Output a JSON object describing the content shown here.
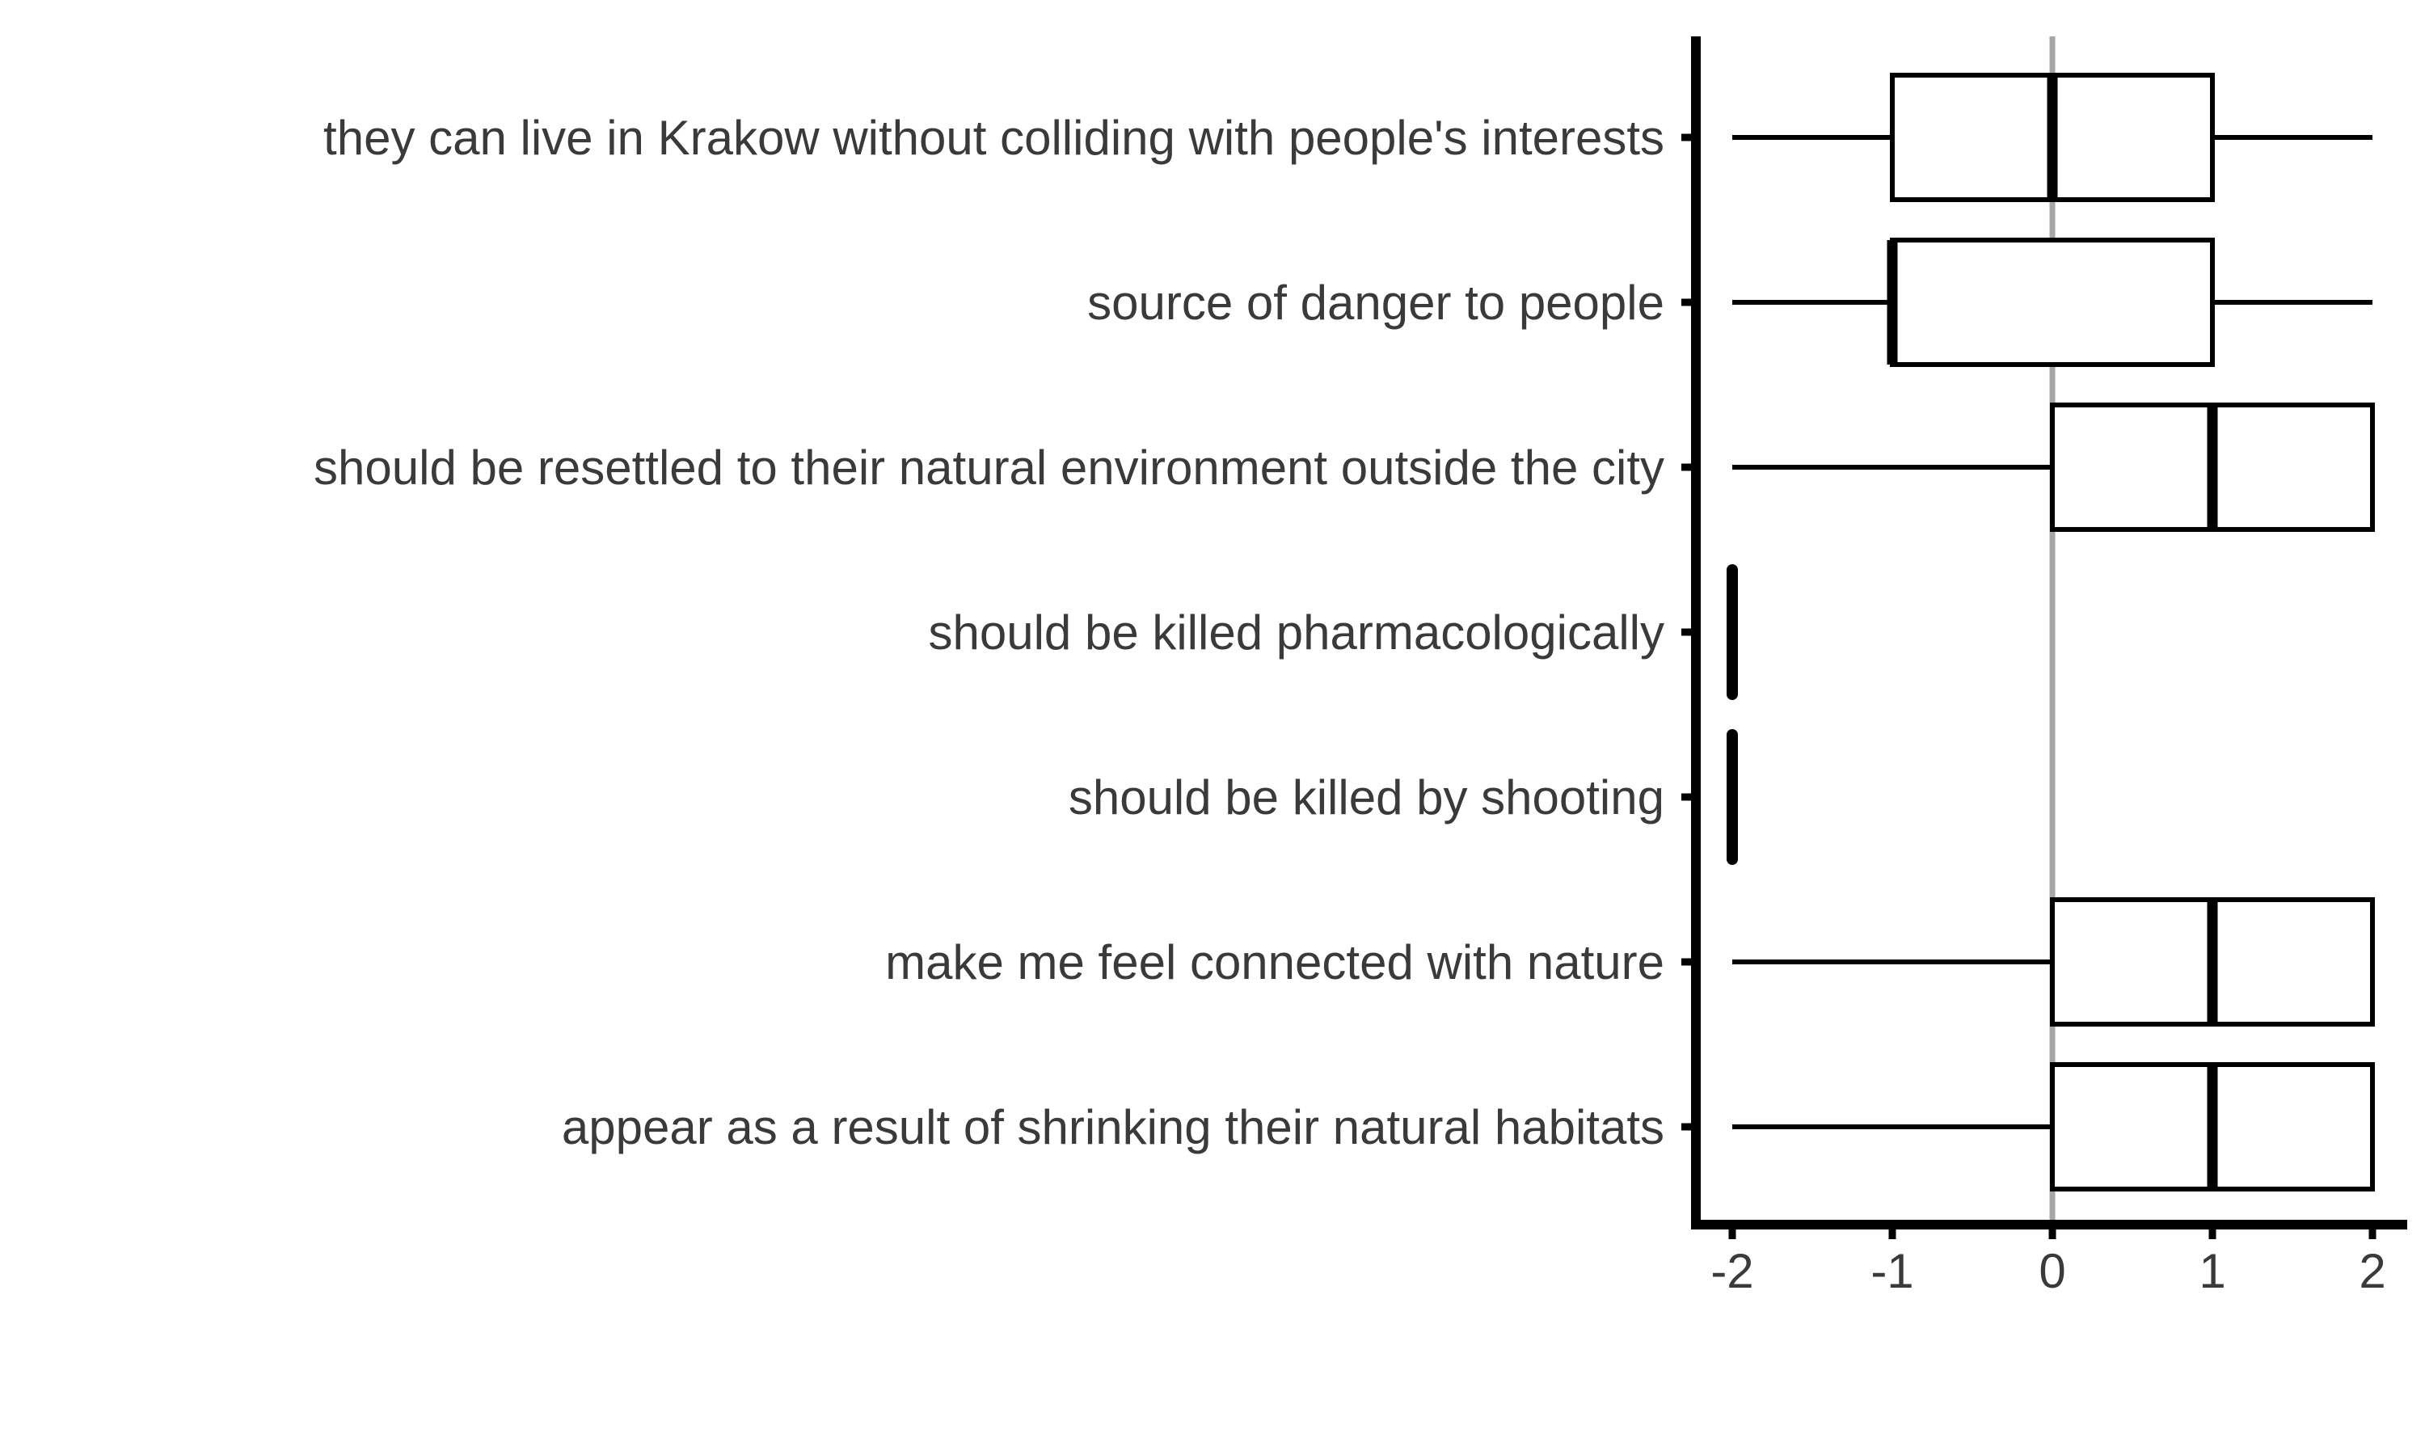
{
  "chart_data": {
    "type": "boxplot",
    "orientation": "horizontal",
    "title": "",
    "xlabel": "",
    "ylabel": "",
    "xlim": [
      -2.1,
      2.1
    ],
    "x_ticks": [
      -2,
      -1,
      0,
      1,
      2
    ],
    "x_tick_labels": [
      "-2",
      "-1",
      "0",
      "1",
      "2"
    ],
    "reference_line": {
      "x": 0,
      "color": "#a6a6a6"
    },
    "grid": false,
    "legend": "none",
    "colors": {
      "box_stroke": "#000000",
      "box_fill": "#ffffff",
      "text": "#3a3a3a",
      "axis": "#000000"
    },
    "categories": [
      {
        "label": "they can live in Krakow without colliding with people's interests",
        "whisker_low": -2,
        "q1": -1,
        "median": 0,
        "q3": 1,
        "whisker_high": 2
      },
      {
        "label": "source of danger to people",
        "whisker_low": -2,
        "q1": -1,
        "median": -1,
        "q3": 1,
        "whisker_high": 2
      },
      {
        "label": "should be resettled to their natural environment outside the city",
        "whisker_low": -2,
        "q1": 0,
        "median": 1,
        "q3": 2,
        "whisker_high": 2
      },
      {
        "label": "should be killed pharmacologically",
        "whisker_low": -2,
        "q1": -2,
        "median": -2,
        "q3": -2,
        "whisker_high": -2
      },
      {
        "label": "should be killed by shooting",
        "whisker_low": -2,
        "q1": -2,
        "median": -2,
        "q3": -2,
        "whisker_high": -2
      },
      {
        "label": "make me feel connected with nature",
        "whisker_low": -2,
        "q1": 0,
        "median": 1,
        "q3": 2,
        "whisker_high": 2
      },
      {
        "label": "appear as a result of shrinking their natural habitats",
        "whisker_low": -2,
        "q1": 0,
        "median": 1,
        "q3": 2,
        "whisker_high": 2
      }
    ]
  }
}
